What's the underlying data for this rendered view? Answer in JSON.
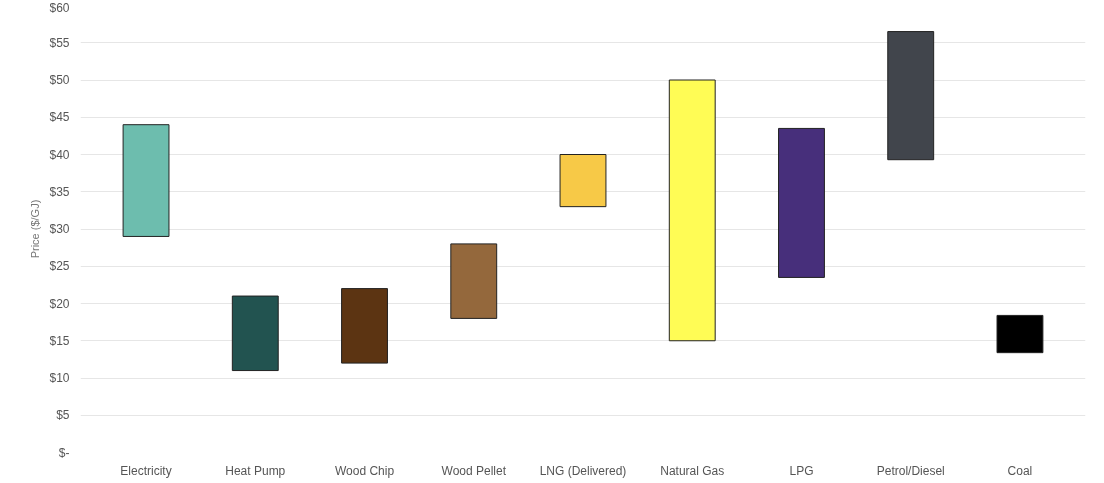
{
  "chart_data": {
    "type": "bar",
    "ylabel": "Price ($/GJ)",
    "categories": [
      "Electricity",
      "Heat Pump",
      "Wood Chip",
      "Wood Pellet",
      "LNG (Delivered)",
      "Natural Gas",
      "LPG",
      "Petrol/Diesel",
      "Coal"
    ],
    "base": [
      29,
      11,
      12,
      18,
      33,
      15,
      23.5,
      39.3,
      13.4
    ],
    "values": [
      15,
      10,
      10,
      10,
      7,
      35,
      20,
      17.2,
      5
    ],
    "colors": [
      "#6dbdae",
      "#225350",
      "#5c3412",
      "#94683c",
      "#f7c947",
      "#fffc55",
      "#472f7b",
      "#41454c",
      "#000000"
    ],
    "ylim": [
      0,
      60
    ],
    "yticks": [
      {
        "value": 0,
        "label": "$-"
      },
      {
        "value": 5,
        "label": "$5"
      },
      {
        "value": 10,
        "label": "$10"
      },
      {
        "value": 15,
        "label": "$15"
      },
      {
        "value": 20,
        "label": "$20"
      },
      {
        "value": 25,
        "label": "$25"
      },
      {
        "value": 30,
        "label": "$30"
      },
      {
        "value": 35,
        "label": "$35"
      },
      {
        "value": 40,
        "label": "$40"
      },
      {
        "value": 45,
        "label": "$45"
      },
      {
        "value": 50,
        "label": "$50"
      },
      {
        "value": 55,
        "label": "$55"
      },
      {
        "value": 60,
        "label": "$60"
      }
    ],
    "grid": "y",
    "legend": false
  }
}
